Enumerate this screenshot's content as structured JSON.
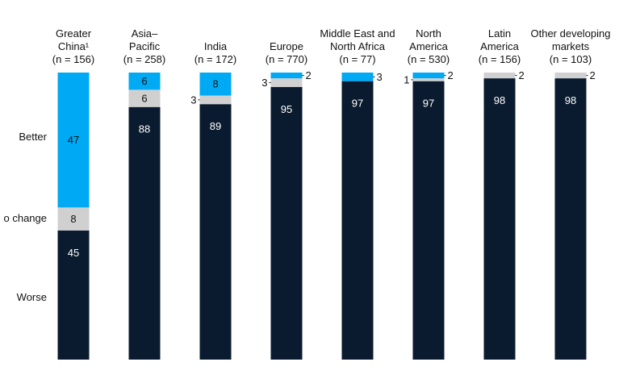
{
  "chart_data": {
    "type": "bar",
    "stacked": true,
    "normalized_percent": true,
    "categories": [
      [
        "Greater",
        "China¹",
        "(n = 156)"
      ],
      [
        "Asia–",
        "Pacific",
        "(n = 258)"
      ],
      [
        "India",
        "(n = 172)"
      ],
      [
        "Europe",
        "(n = 770)"
      ],
      [
        "Middle East and",
        "North Africa",
        "(n = 77)"
      ],
      [
        "North",
        "America",
        "(n = 530)"
      ],
      [
        "Latin",
        "America",
        "(n = 156)"
      ],
      [
        "Other developing",
        "markets",
        "(n = 103)"
      ]
    ],
    "series": [
      {
        "name": "Worse",
        "color": "#0b1b2f",
        "values": [
          45,
          88,
          89,
          95,
          97,
          97,
          98,
          98
        ]
      },
      {
        "name": "No change",
        "color": "#d0d0d0",
        "values": [
          8,
          6,
          3,
          3,
          0,
          1,
          2,
          2
        ]
      },
      {
        "name": "Better",
        "color": "#00a9f4",
        "values": [
          47,
          6,
          8,
          2,
          3,
          2,
          0,
          0
        ]
      }
    ],
    "row_labels": [
      "Better",
      "o change",
      "Worse"
    ],
    "ylim": [
      0,
      100
    ],
    "grid": false,
    "legend": "left"
  }
}
